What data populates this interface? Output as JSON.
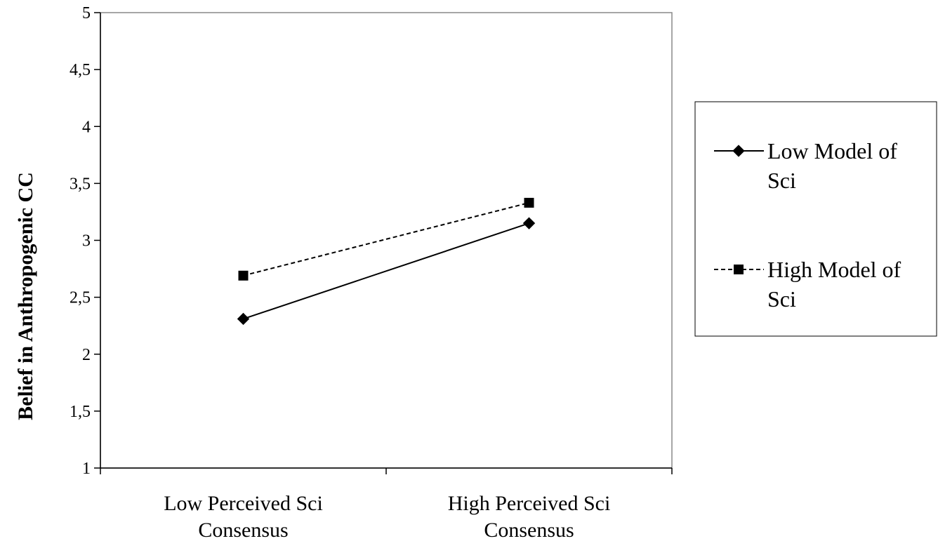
{
  "chart_data": {
    "type": "line",
    "title": "",
    "xlabel": "",
    "ylabel": "Belief in Anthropogenic CC",
    "categories": [
      [
        "Low Perceived Sci",
        "Consensus"
      ],
      [
        "High Perceived Sci",
        "Consensus"
      ]
    ],
    "ylim": [
      1,
      5
    ],
    "yticks": [
      1,
      1.5,
      2,
      2.5,
      3,
      3.5,
      4,
      4.5,
      5
    ],
    "ytick_labels": [
      "1",
      "1,5",
      "2",
      "2,5",
      "3",
      "3,5",
      "4",
      "4,5",
      "5"
    ],
    "grid": false,
    "legend_position": "right",
    "series": [
      {
        "name": [
          "Low Model of",
          "Sci"
        ],
        "values": [
          2.31,
          3.15
        ],
        "marker": "diamond",
        "line_style": "solid",
        "color": "#000000"
      },
      {
        "name": [
          "High Model of",
          "Sci"
        ],
        "values": [
          2.69,
          3.33
        ],
        "marker": "square",
        "line_style": "dashed",
        "color": "#000000"
      }
    ]
  }
}
